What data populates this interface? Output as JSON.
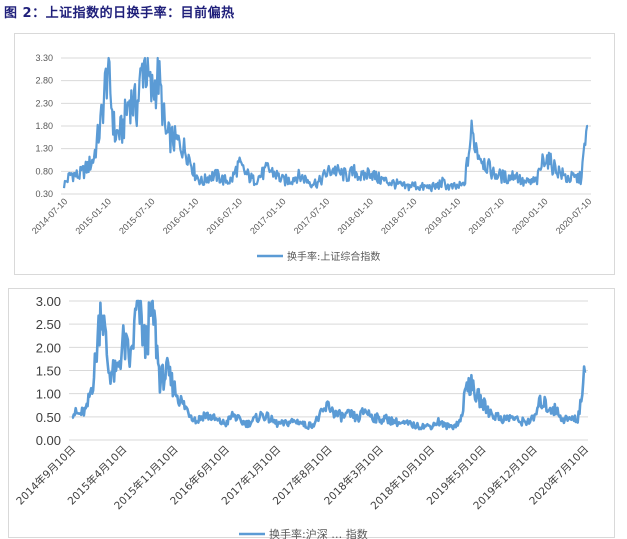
{
  "figure": {
    "title": "图 2：上证指数的日换手率：目前偏热"
  },
  "colors": {
    "series": "#5b9bd5",
    "title": "#1f1f7a",
    "grid": "#d9d9d9"
  },
  "chart_data": [
    {
      "type": "line",
      "title": "",
      "xlabel": "",
      "ylabel": "",
      "ylim": [
        0.3,
        3.3
      ],
      "yticks": [
        "0.30",
        "0.80",
        "1.30",
        "1.80",
        "2.30",
        "2.80",
        "3.30"
      ],
      "xticks": [
        "2014-07-10",
        "2015-01-10",
        "2015-07-10",
        "2016-01-10",
        "2016-07-10",
        "2017-01-10",
        "2017-07-10",
        "2018-01-10",
        "2018-07-10",
        "2019-01-10",
        "2019-07-10",
        "2020-01-10",
        "2020-07-10"
      ],
      "grid": true,
      "legend_position": "bottom",
      "series": [
        {
          "name": "换手率:上证综合指数",
          "x": [
            "2014-07",
            "2014-08",
            "2014-09",
            "2014-10",
            "2014-11",
            "2014-12",
            "2015-01",
            "2015-02",
            "2015-03",
            "2015-04",
            "2015-05",
            "2015-06",
            "2015-07",
            "2015-08",
            "2015-09",
            "2015-10",
            "2015-11",
            "2015-12",
            "2016-01",
            "2016-02",
            "2016-03",
            "2016-04",
            "2016-05",
            "2016-06",
            "2016-07",
            "2016-08",
            "2016-09",
            "2016-10",
            "2016-11",
            "2016-12",
            "2017-01",
            "2017-02",
            "2017-03",
            "2017-04",
            "2017-05",
            "2017-06",
            "2017-07",
            "2017-08",
            "2017-09",
            "2017-10",
            "2017-11",
            "2017-12",
            "2018-01",
            "2018-02",
            "2018-03",
            "2018-04",
            "2018-05",
            "2018-06",
            "2018-07",
            "2018-08",
            "2018-09",
            "2018-10",
            "2018-11",
            "2018-12",
            "2019-01",
            "2019-02",
            "2019-03",
            "2019-04",
            "2019-05",
            "2019-06",
            "2019-07",
            "2019-08",
            "2019-09",
            "2019-10",
            "2019-11",
            "2019-12",
            "2020-01",
            "2020-02",
            "2020-03",
            "2020-04",
            "2020-05",
            "2020-06",
            "2020-07"
          ],
          "values": [
            0.5,
            0.75,
            0.7,
            0.85,
            1.05,
            1.8,
            3.1,
            1.6,
            1.7,
            2.4,
            2.2,
            3.3,
            2.5,
            2.9,
            1.6,
            1.5,
            1.4,
            1.2,
            0.75,
            0.55,
            0.7,
            0.7,
            0.6,
            0.6,
            0.95,
            0.75,
            0.6,
            0.7,
            0.85,
            0.75,
            0.6,
            0.6,
            0.7,
            0.65,
            0.55,
            0.55,
            0.75,
            0.85,
            0.75,
            0.7,
            0.8,
            0.65,
            0.8,
            0.65,
            0.6,
            0.55,
            0.5,
            0.45,
            0.5,
            0.45,
            0.45,
            0.45,
            0.55,
            0.45,
            0.45,
            0.5,
            1.65,
            1.2,
            0.95,
            0.75,
            0.7,
            0.65,
            0.75,
            0.55,
            0.55,
            0.6,
            1.15,
            0.95,
            0.8,
            0.65,
            0.65,
            0.65,
            1.8
          ]
        }
      ]
    },
    {
      "type": "line",
      "title": "",
      "xlabel": "",
      "ylabel": "",
      "ylim": [
        0.0,
        3.0
      ],
      "yticks": [
        "0.00",
        "0.50",
        "1.00",
        "1.50",
        "2.00",
        "2.50",
        "3.00"
      ],
      "xticks": [
        "2014年9月10日",
        "2015年4月10日",
        "2015年11月10日",
        "2016年6月10日",
        "2017年1月10日",
        "2017年8月10日",
        "2018年3月10日",
        "2018年10月10日",
        "2019年5月10日",
        "2019年12月10日",
        "2020年7月10日"
      ],
      "grid": true,
      "legend_position": "bottom",
      "legend_partial_text": "换手率:沪深 … 指数",
      "series": [
        {
          "name": "换手率",
          "x": [
            "2014-09",
            "2014-10",
            "2014-11",
            "2014-12",
            "2015-01",
            "2015-02",
            "2015-03",
            "2015-04",
            "2015-05",
            "2015-06",
            "2015-07",
            "2015-08",
            "2015-09",
            "2015-10",
            "2015-11",
            "2015-12",
            "2016-01",
            "2016-02",
            "2016-03",
            "2016-04",
            "2016-05",
            "2016-06",
            "2016-07",
            "2016-08",
            "2016-09",
            "2016-10",
            "2016-11",
            "2016-12",
            "2017-01",
            "2017-02",
            "2017-03",
            "2017-04",
            "2017-05",
            "2017-06",
            "2017-07",
            "2017-08",
            "2017-09",
            "2017-10",
            "2017-11",
            "2017-12",
            "2018-01",
            "2018-02",
            "2018-03",
            "2018-04",
            "2018-05",
            "2018-06",
            "2018-07",
            "2018-08",
            "2018-09",
            "2018-10",
            "2018-11",
            "2018-12",
            "2019-01",
            "2019-02",
            "2019-03",
            "2019-04",
            "2019-05",
            "2019-06",
            "2019-07",
            "2019-08",
            "2019-09",
            "2019-10",
            "2019-11",
            "2019-12",
            "2020-01",
            "2020-02",
            "2020-03",
            "2020-04",
            "2020-05",
            "2020-06",
            "2020-07"
          ],
          "values": [
            0.6,
            0.55,
            0.65,
            1.4,
            3.0,
            1.5,
            1.4,
            2.1,
            1.7,
            3.0,
            2.0,
            2.9,
            1.3,
            1.45,
            1.1,
            0.8,
            0.6,
            0.4,
            0.55,
            0.5,
            0.4,
            0.35,
            0.55,
            0.4,
            0.35,
            0.45,
            0.55,
            0.45,
            0.35,
            0.35,
            0.4,
            0.4,
            0.3,
            0.35,
            0.55,
            0.75,
            0.55,
            0.5,
            0.55,
            0.45,
            0.65,
            0.5,
            0.45,
            0.45,
            0.4,
            0.35,
            0.35,
            0.3,
            0.3,
            0.3,
            0.4,
            0.3,
            0.3,
            0.4,
            1.3,
            1.0,
            0.8,
            0.6,
            0.5,
            0.45,
            0.5,
            0.4,
            0.4,
            0.45,
            0.85,
            0.7,
            0.65,
            0.45,
            0.45,
            0.45,
            1.45
          ]
        }
      ]
    }
  ]
}
